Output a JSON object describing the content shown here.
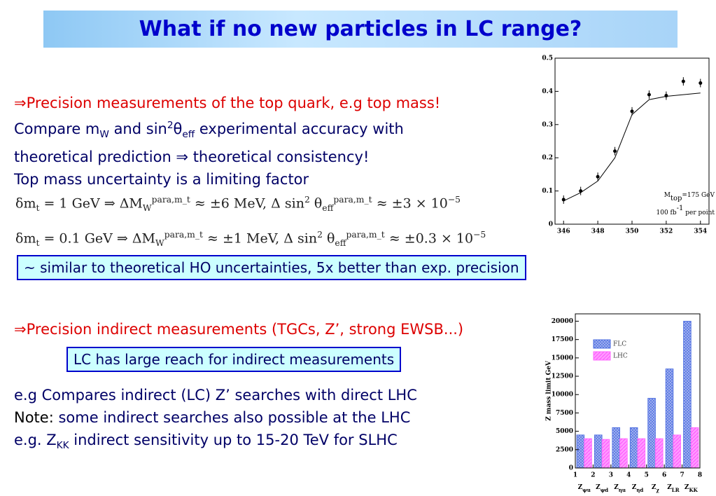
{
  "title": "What if no new particles in LC range?",
  "section1": [
    [
      "⇒Precision measurements of the top quark, e.g top mass!"
    ],
    [
      "Compare m",
      {
        "sub": "W"
      },
      " and sin",
      {
        "sup": "2"
      },
      "θ",
      {
        "sub": "eff"
      },
      " experimental accuracy with"
    ],
    [
      "theoretical prediction ⇒ theoretical consistency!"
    ],
    [
      "Top mass uncertainty is a limiting factor"
    ]
  ],
  "equations": [
    [
      "δm",
      {
        "sub": "t"
      },
      " = 1 GeV   ⇒   ΔM",
      {
        "sub": "W"
      },
      {
        "sup": "para,m_t"
      },
      " ≈ ±6 MeV,    Δ sin",
      {
        "sup": "2"
      },
      " θ",
      {
        "sub": "eff"
      },
      {
        "sup": "para,m_t"
      },
      " ≈ ±3 × 10",
      {
        "sup": "−5"
      }
    ],
    [
      "δm",
      {
        "sub": "t"
      },
      " = 0.1 GeV   ⇒   ΔM",
      {
        "sub": "W"
      },
      {
        "sup": "para,m_t"
      },
      " ≈ ±1 MeV,    Δ sin",
      {
        "sup": "2"
      },
      " θ",
      {
        "sub": "eff"
      },
      {
        "sup": "para,m_t"
      },
      " ≈ ±0.3 × 10",
      {
        "sup": "−5"
      }
    ]
  ],
  "box1": "~ similar to theoretical HO uncertainties, 5x better than exp. precision",
  "section2": "⇒Precision indirect measurements (TGCs, Z’, strong EWSB...)",
  "box2": "LC has large reach for indirect measurements",
  "section3": [
    [
      "e.g Compares indirect (LC) Z’ searches with direct LHC"
    ],
    [
      {
        "note": "Note:"
      },
      " some indirect searches also possible at the LHC"
    ],
    [
      "e.g. Z",
      {
        "sub": "KK"
      },
      " indirect sensitivity up to 15-20 TeV for SLHC"
    ]
  ],
  "chart_data": [
    {
      "type": "scatter",
      "x": [
        346,
        347,
        348,
        349,
        350,
        351,
        352,
        353,
        354
      ],
      "series": [
        {
          "color": "#000000",
          "values": [
            0.074,
            0.1,
            0.143,
            0.22,
            0.34,
            0.39,
            0.387,
            0.43,
            0.425
          ]
        },
        {
          "color": "#000000",
          "line": true,
          "values": [
            0.07,
            0.095,
            0.13,
            0.2,
            0.33,
            0.375,
            0.385,
            0.39,
            0.395
          ]
        }
      ],
      "xlim": [
        345.5,
        354.5
      ],
      "xticks": [
        346,
        348,
        350,
        352,
        354
      ],
      "ylim": [
        0,
        0.5
      ],
      "yticks": [
        0,
        0.1,
        0.2,
        0.3,
        0.4,
        0.5
      ],
      "annotations": [
        [
          "M",
          {
            "sub": "top"
          },
          "=175 GeV"
        ],
        [
          "100 fb",
          {
            "sup": "-1"
          },
          " per point"
        ]
      ]
    },
    {
      "type": "bar",
      "ylabel": "Z mass limit GeV",
      "categories": [
        "Zψu",
        "Zψd",
        "Zηu",
        "Zηd",
        "Zχ",
        "ZLR",
        "ZKK"
      ],
      "series": [
        {
          "name": "FLC",
          "color": "#4a6be0",
          "values": [
            4500,
            4500,
            5500,
            5500,
            9500,
            13500,
            20000
          ]
        },
        {
          "name": "LHC",
          "color": "#ff66ff",
          "values": [
            4000,
            3900,
            4000,
            4000,
            4000,
            4500,
            5500
          ]
        }
      ],
      "xlim": [
        1,
        8
      ],
      "xticks": [
        1,
        2,
        3,
        4,
        5,
        6,
        7,
        8
      ],
      "ylim": [
        0,
        21000
      ],
      "yticks": [
        0,
        2500,
        5000,
        7500,
        10000,
        12500,
        15000,
        17500,
        20000
      ],
      "legend": "upper-left"
    }
  ]
}
